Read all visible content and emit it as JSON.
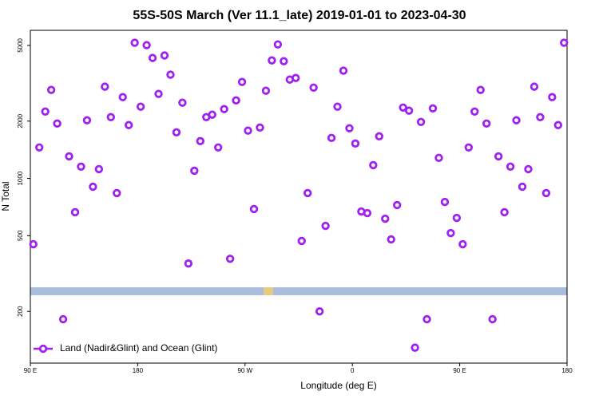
{
  "chart_data": {
    "type": "scatter",
    "title": "55S-50S March (Ver 11.1_late)   2019-01-01 to 2023-04-30",
    "xlabel": "Longitude (deg E)",
    "ylabel": "N Total",
    "log_y": true,
    "legend": "lower left",
    "xlim": [
      90,
      540
    ],
    "xticks": [
      {
        "value": 90,
        "label": "90 E"
      },
      {
        "value": 180,
        "label": "180"
      },
      {
        "value": 270,
        "label": "90 W"
      },
      {
        "value": 360,
        "label": "0"
      },
      {
        "value": 450,
        "label": "90 E"
      },
      {
        "value": 540,
        "label": "180"
      }
    ],
    "ylim": [
      107,
      6000
    ],
    "yticks": [
      200,
      500,
      1000,
      2000,
      5000
    ],
    "series": [
      {
        "name": "Land (Nadir&Glint) and Ocean (Glint)",
        "color": "#a020f0",
        "x": [
          92.5,
          97.5,
          102.5,
          107.5,
          112.5,
          117.5,
          122.5,
          127.5,
          132.5,
          137.5,
          142.5,
          147.5,
          152.5,
          157.5,
          162.5,
          167.5,
          172.5,
          177.5,
          182.5,
          187.5,
          192.5,
          197.5,
          202.5,
          207.5,
          212.5,
          217.5,
          222.5,
          227.5,
          232.5,
          237.5,
          242.5,
          247.5,
          252.5,
          257.5,
          262.5,
          267.5,
          272.5,
          277.5,
          282.5,
          287.5,
          292.5,
          297.5,
          302.5,
          307.5,
          312.5,
          317.5,
          322.5,
          327.5,
          332.5,
          337.5,
          342.5,
          347.5,
          352.5,
          357.5,
          362.5,
          367.5,
          372.5,
          377.5,
          382.5,
          387.5,
          392.5,
          397.5,
          402.5,
          407.5,
          412.5,
          417.5,
          422.5,
          427.5,
          432.5,
          437.5,
          442.5,
          447.5,
          452.5,
          457.5,
          462.5,
          467.5,
          472.5,
          477.5,
          482.5,
          487.5,
          492.5,
          497.5,
          502.5,
          507.5,
          512.5,
          517.5,
          522.5,
          527.5,
          532.5,
          537.5
        ],
        "values": [
          451,
          1454,
          2245,
          2918,
          1942,
          182,
          1306,
          664,
          1153,
          2020,
          904,
          1119,
          3034,
          2099,
          837,
          2673,
          1906,
          5165,
          2382,
          5012,
          4295,
          2780,
          4426,
          3507,
          1746,
          2500,
          357,
          1097,
          1570,
          2099,
          2163,
          1454,
          2312,
          378,
          2570,
          3214,
          1782,
          690,
          1850,
          2890,
          4170,
          5060,
          4130,
          3305,
          3370,
          469,
          837,
          3000,
          200,
          563,
          1632,
          2382,
          3682,
          1834,
          1525,
          670,
          657,
          1174,
          1664,
          614,
          478,
          724,
          2357,
          2270,
          129,
          1980,
          182,
          2334,
          1282,
          752,
          516,
          620,
          451,
          1454,
          2245,
          2918,
          1942,
          182,
          1306,
          664,
          1153,
          2020,
          904,
          1119,
          3034,
          2099,
          837,
          2673,
          1906,
          5165
        ]
      }
    ]
  }
}
